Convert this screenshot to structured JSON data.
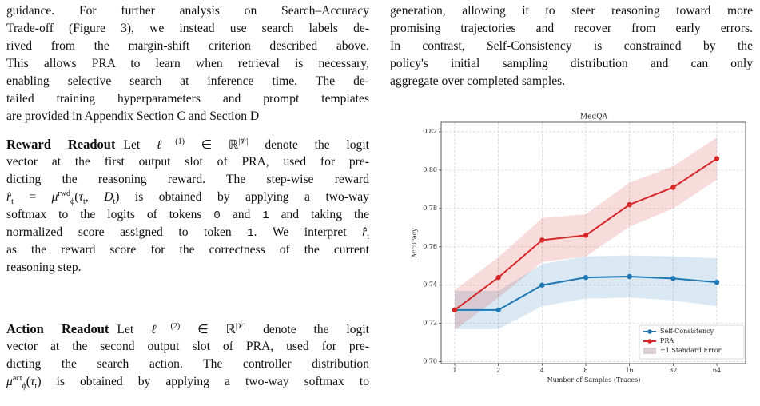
{
  "left": {
    "intro_lines": [
      "guidance. For further analysis on Search–Accuracy",
      "Trade-off (Figure 3), we instead use search labels de-",
      "rived from the margin-shift criterion described above.",
      "This allows PRA to learn when retrieval is necessary,",
      "enabling selective search at inference time. The de-",
      "tailed training hyperparameters and prompt templates",
      "are provided in Appendix Section C and Section D"
    ],
    "reward": {
      "heading": "Reward Readout",
      "lines": [
        [
          "Let ",
          "ℓ",
          "(1)",
          " ∈ ℝ",
          "|𝒱|",
          " denote the logit"
        ],
        "vector at the first output slot of PRA, used for pre-",
        "dicting the reasoning reward. The step-wise reward",
        [
          "r̂",
          "t",
          " = ",
          "μ",
          "rwd",
          "ϕ",
          "(",
          "τ",
          "t",
          ", ",
          "D",
          "t",
          ") is obtained by applying a two-way"
        ],
        [
          "softmax to the logits of tokens ",
          "0",
          " and ",
          "1",
          " and taking the"
        ],
        [
          "normalized score assigned to token ",
          "1",
          ". We interpret ",
          "r̂",
          "t"
        ],
        "as the reward score for the correctness of the current",
        "reasoning step."
      ]
    },
    "action": {
      "heading": "Action Readout",
      "lines": [
        [
          "Let ",
          "ℓ",
          "(2)",
          " ∈ ℝ",
          "|𝒱|",
          " denote the logit"
        ],
        "vector at the second output slot of PRA, used for pre-",
        "dicting the search action. The controller distribution",
        [
          "μ",
          "act",
          "ϕ",
          "(",
          "τ",
          "t",
          ") is obtained by applying a two-way softmax to"
        ]
      ]
    }
  },
  "right": {
    "lines": [
      "generation, allowing it to steer reasoning toward more",
      "promising trajectories and recover from early errors.",
      "In contrast, Self-Consistency is constrained by the",
      "policy's initial sampling distribution and can only",
      "aggregate over completed samples."
    ]
  },
  "chart_data": {
    "type": "line",
    "title": "MedQA",
    "x_label": "Number of Samples (Traces)",
    "y_label": "Accuracy",
    "categories": [
      "1",
      "2",
      "4",
      "8",
      "16",
      "32",
      "64"
    ],
    "series": [
      {
        "name": "Self-Consistency",
        "color": "#1f77b4",
        "values": [
          0.727,
          0.727,
          0.74,
          0.744,
          0.7445,
          0.7435,
          0.7415
        ],
        "errors": [
          0.01,
          0.01,
          0.011,
          0.011,
          0.011,
          0.0115,
          0.0125
        ]
      },
      {
        "name": "PRA",
        "color": "#d62728",
        "values": [
          0.727,
          0.744,
          0.7635,
          0.766,
          0.782,
          0.791,
          0.806
        ],
        "errors": [
          0.0105,
          0.0105,
          0.0115,
          0.011,
          0.0115,
          0.011,
          0.011
        ]
      }
    ],
    "band_label": "±1 Standard Error",
    "ylim": [
      0.699,
      0.825
    ],
    "yticks": [
      {
        "value": 0.7,
        "label": "0.70"
      },
      0.72,
      0.74,
      0.76,
      0.78,
      {
        "value": 0.8,
        "label": "0.80"
      },
      0.82
    ],
    "grid": true,
    "legend": "lower right"
  }
}
